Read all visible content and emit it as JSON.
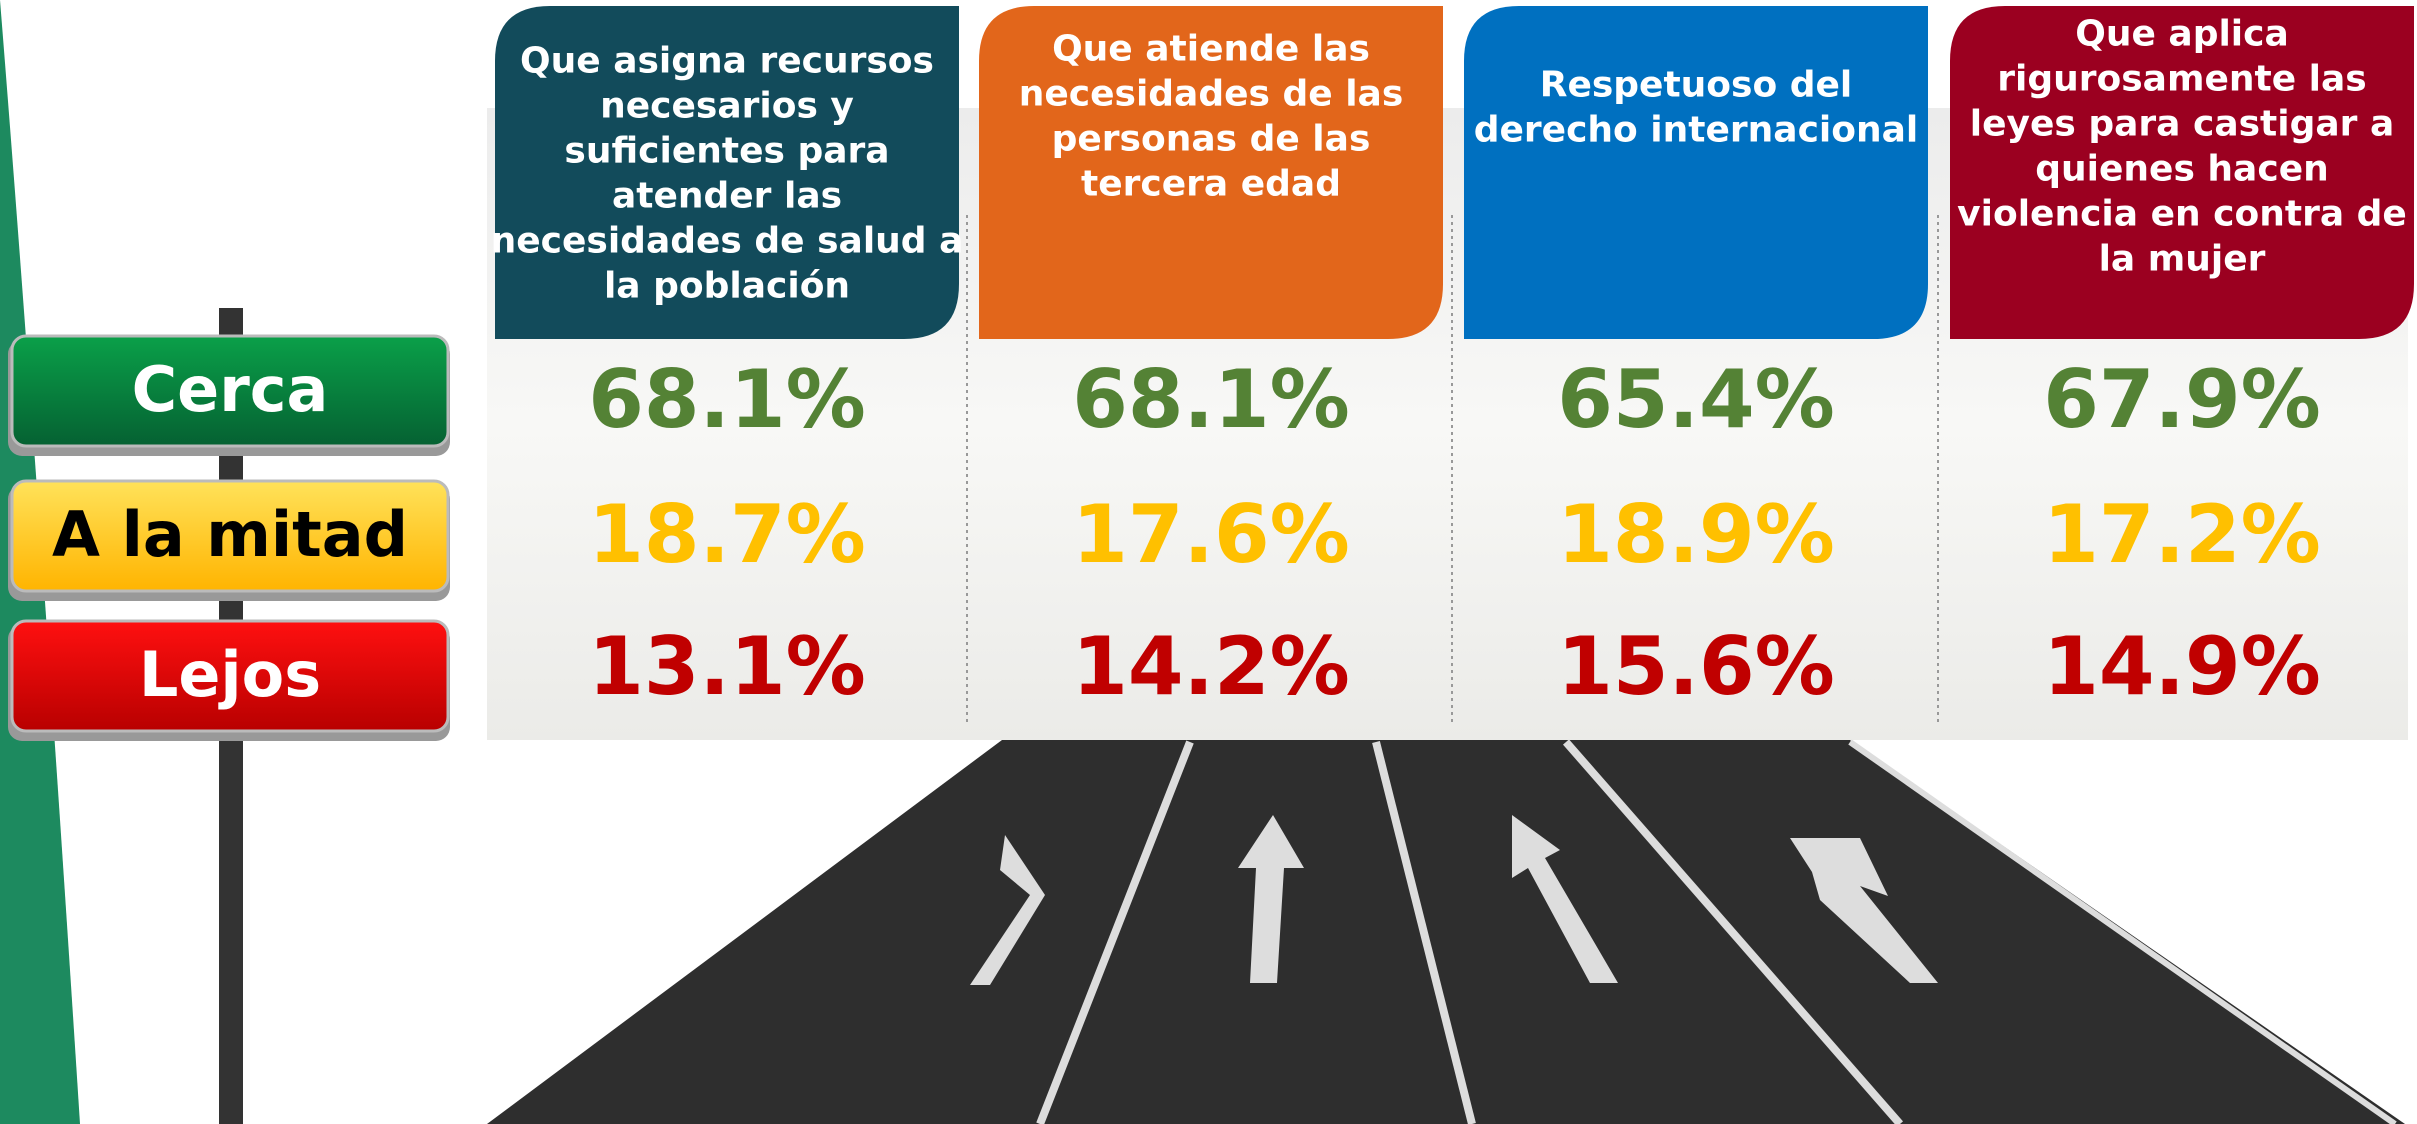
{
  "labels": [
    "Cerca",
    "A la mitad",
    "Lejos"
  ],
  "columns": [
    {
      "header_lines": [
        "Que asigna recursos",
        "necesarios y",
        "suficientes para",
        "atender las",
        "necesidades de salud a",
        "la población"
      ],
      "values": [
        "68.1%",
        "18.7%",
        "13.1%"
      ]
    },
    {
      "header_lines": [
        "Que atiende las",
        "necesidades de las",
        "personas de las",
        "tercera edad"
      ],
      "values": [
        "68.1%",
        "17.6%",
        "14.2%"
      ]
    },
    {
      "header_lines": [
        "Respetuoso  del",
        "derecho internacional"
      ],
      "values": [
        "65.4%",
        "18.9%",
        "15.6%"
      ]
    },
    {
      "header_lines": [
        "Que aplica",
        "rigurosamente las",
        "leyes para castigar a",
        "quienes hacen",
        "violencia en contra de",
        "la mujer"
      ],
      "values": [
        "67.9%",
        "17.2%",
        "14.9%"
      ]
    }
  ]
}
